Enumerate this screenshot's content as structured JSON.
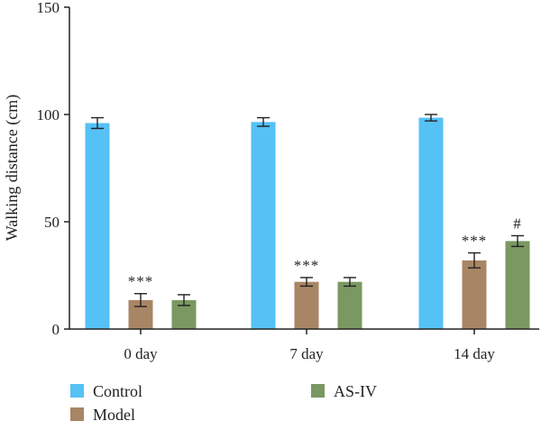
{
  "chart_data": {
    "type": "bar",
    "title": "",
    "xlabel": "",
    "ylabel": "Walking distance (cm)",
    "ylim": [
      0,
      150
    ],
    "yticks": [
      0,
      50,
      100,
      150
    ],
    "grid": false,
    "legend_position": "bottom",
    "categories": [
      "0 day",
      "7 day",
      "14 day"
    ],
    "series": [
      {
        "name": "Control",
        "color": "#55c1f5",
        "values": [
          96,
          96.5,
          98.5
        ],
        "errors": [
          2.5,
          2,
          1.5
        ]
      },
      {
        "name": "Model",
        "color": "#a88564",
        "values": [
          13.5,
          22,
          32
        ],
        "errors": [
          3,
          2,
          3.5
        ]
      },
      {
        "name": "AS-IV",
        "color": "#7a9862",
        "values": [
          13.5,
          22,
          41
        ],
        "errors": [
          2.5,
          2,
          2.5
        ]
      }
    ],
    "annotations": [
      {
        "category_index": 0,
        "series_index": 1,
        "text": "***"
      },
      {
        "category_index": 1,
        "series_index": 1,
        "text": "***"
      },
      {
        "category_index": 2,
        "series_index": 1,
        "text": "***"
      },
      {
        "category_index": 2,
        "series_index": 2,
        "text": "#"
      }
    ]
  }
}
